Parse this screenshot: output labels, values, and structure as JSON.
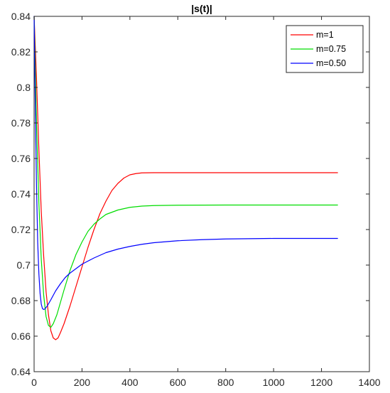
{
  "chart_data": {
    "type": "line",
    "title": "|s(t)|",
    "xlabel": "",
    "ylabel": "",
    "xlim": [
      0,
      1400
    ],
    "ylim": [
      0.64,
      0.84
    ],
    "x_ticks": [
      0,
      200,
      400,
      600,
      800,
      1000,
      1200,
      1400
    ],
    "y_ticks": [
      0.64,
      0.66,
      0.68,
      0.7,
      0.72,
      0.74,
      0.76,
      0.78,
      0.8,
      0.82,
      0.84
    ],
    "x_tick_labels": [
      "0",
      "200",
      "400",
      "600",
      "800",
      "1000",
      "1200",
      "1400"
    ],
    "y_tick_labels": [
      "0.64",
      "0.66",
      "0.68",
      "0.7",
      "0.72",
      "0.74",
      "0.76",
      "0.78",
      "0.8",
      "0.82",
      "0.84"
    ],
    "grid": false,
    "legend_position": "top-right",
    "series": [
      {
        "name": "m=1",
        "color": "#ff0000",
        "points": [
          [
            0,
            0.84
          ],
          [
            10,
            0.805
          ],
          [
            20,
            0.765
          ],
          [
            30,
            0.73
          ],
          [
            40,
            0.705
          ],
          [
            50,
            0.685
          ],
          [
            60,
            0.672
          ],
          [
            70,
            0.663
          ],
          [
            80,
            0.659
          ],
          [
            90,
            0.658
          ],
          [
            100,
            0.659
          ],
          [
            110,
            0.662
          ],
          [
            125,
            0.667
          ],
          [
            150,
            0.677
          ],
          [
            175,
            0.688
          ],
          [
            200,
            0.699
          ],
          [
            225,
            0.71
          ],
          [
            250,
            0.72
          ],
          [
            275,
            0.729
          ],
          [
            300,
            0.736
          ],
          [
            325,
            0.742
          ],
          [
            350,
            0.746
          ],
          [
            375,
            0.749
          ],
          [
            400,
            0.7508
          ],
          [
            425,
            0.7515
          ],
          [
            450,
            0.7519
          ],
          [
            500,
            0.752
          ],
          [
            600,
            0.752
          ],
          [
            800,
            0.752
          ],
          [
            1000,
            0.752
          ],
          [
            1267,
            0.752
          ]
        ]
      },
      {
        "name": "m=0.75",
        "color": "#00dd00",
        "points": [
          [
            0,
            0.84
          ],
          [
            10,
            0.78
          ],
          [
            20,
            0.735
          ],
          [
            30,
            0.703
          ],
          [
            40,
            0.683
          ],
          [
            50,
            0.671
          ],
          [
            60,
            0.666
          ],
          [
            70,
            0.665
          ],
          [
            80,
            0.667
          ],
          [
            95,
            0.672
          ],
          [
            110,
            0.679
          ],
          [
            125,
            0.686
          ],
          [
            150,
            0.697
          ],
          [
            175,
            0.706
          ],
          [
            200,
            0.713
          ],
          [
            225,
            0.719
          ],
          [
            250,
            0.723
          ],
          [
            275,
            0.726
          ],
          [
            300,
            0.7285
          ],
          [
            350,
            0.731
          ],
          [
            400,
            0.7325
          ],
          [
            450,
            0.7332
          ],
          [
            500,
            0.7335
          ],
          [
            600,
            0.7337
          ],
          [
            800,
            0.7338
          ],
          [
            1000,
            0.7338
          ],
          [
            1267,
            0.7338
          ]
        ]
      },
      {
        "name": "m=0.50",
        "color": "#0000ff",
        "points": [
          [
            0,
            0.84
          ],
          [
            5,
            0.79
          ],
          [
            10,
            0.745
          ],
          [
            15,
            0.713
          ],
          [
            20,
            0.695
          ],
          [
            25,
            0.684
          ],
          [
            30,
            0.678
          ],
          [
            35,
            0.6755
          ],
          [
            40,
            0.675
          ],
          [
            45,
            0.6753
          ],
          [
            55,
            0.677
          ],
          [
            70,
            0.6805
          ],
          [
            90,
            0.6855
          ],
          [
            110,
            0.6895
          ],
          [
            130,
            0.693
          ],
          [
            150,
            0.6955
          ],
          [
            175,
            0.698
          ],
          [
            200,
            0.7005
          ],
          [
            250,
            0.704
          ],
          [
            300,
            0.707
          ],
          [
            350,
            0.709
          ],
          [
            400,
            0.7105
          ],
          [
            450,
            0.7117
          ],
          [
            500,
            0.7126
          ],
          [
            600,
            0.7137
          ],
          [
            700,
            0.7143
          ],
          [
            800,
            0.7147
          ],
          [
            1000,
            0.715
          ],
          [
            1267,
            0.715
          ]
        ]
      }
    ]
  }
}
